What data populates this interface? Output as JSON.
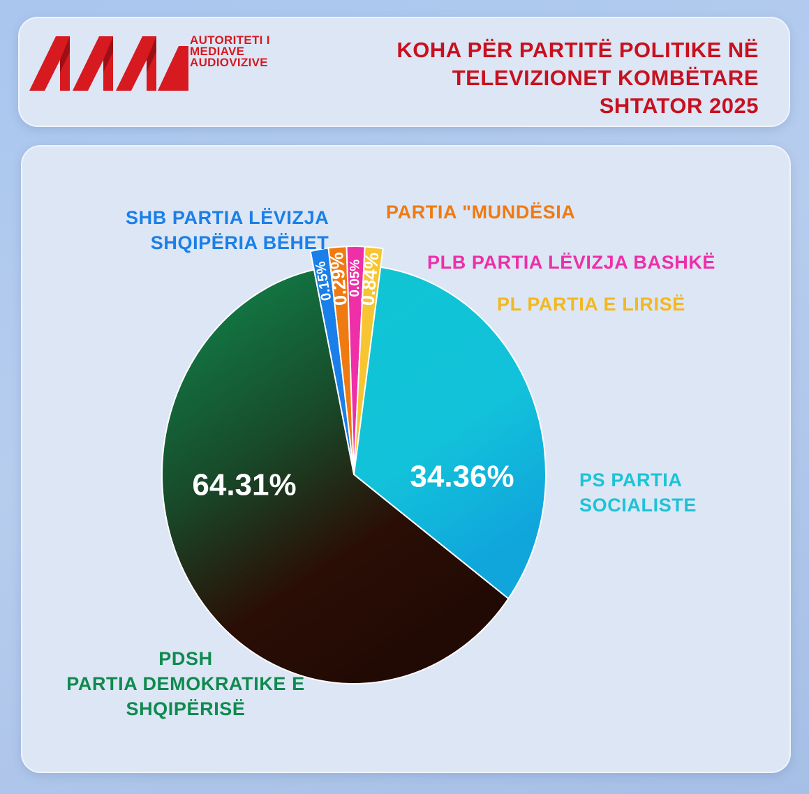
{
  "logo": {
    "mark": "AMA",
    "text_lines": [
      "AUTORITETI I",
      "MEDIAVE",
      "AUDIOVIZIVE"
    ]
  },
  "title_lines": [
    "KOHA PËR PARTITË POLITIKE NË",
    "TELEVIZIONET KOMBËTARE",
    "SHTATOR 2025"
  ],
  "colors": {
    "brand_red": "#d71920",
    "title_red": "#c8101e",
    "pdsh": "#0f8a4e",
    "ps": "#17c6d6",
    "shb": "#1a7fe8",
    "mundesia": "#f07a12",
    "plb": "#ee2fa8",
    "pl": "#f7c531"
  },
  "chart_data": {
    "type": "pie",
    "title": "KOHA PËR PARTITË POLITIKE NË TELEVIZIONET KOMBËTARE SHTATOR 2025",
    "legend": "none",
    "slices": [
      {
        "key": "shb",
        "label_lines": [
          "SHB PARTIA LËVIZJA",
          "SHQIPËRIA BËHET"
        ],
        "value": 0.15,
        "value_label": "0.15%",
        "color": "#1a7fe8"
      },
      {
        "key": "mundesia",
        "label_lines": [
          "PARTIA \"MUNDËSIA"
        ],
        "value": 0.29,
        "value_label": "0.29%",
        "color": "#f07a12"
      },
      {
        "key": "plb",
        "label_lines": [
          "PLB PARTIA LËVIZJA BASHKË"
        ],
        "value": 0.05,
        "value_label": "0.05%",
        "color": "#ee2fa8"
      },
      {
        "key": "pl",
        "label_lines": [
          "PL PARTIA E LIRISË"
        ],
        "value": 0.84,
        "value_label": "0.84%",
        "color": "#f7c531"
      },
      {
        "key": "ps",
        "label_lines": [
          "PS PARTIA",
          "SOCIALISTE"
        ],
        "value": 34.36,
        "value_label": "34.36%",
        "color": "#17c6d6"
      },
      {
        "key": "pdsh",
        "label_lines": [
          "PDSH",
          "PARTIA DEMOKRATIKE E",
          "SHQIPËRISË"
        ],
        "value": 64.31,
        "value_label": "64.31%",
        "color": "#0f8a4e"
      }
    ]
  }
}
